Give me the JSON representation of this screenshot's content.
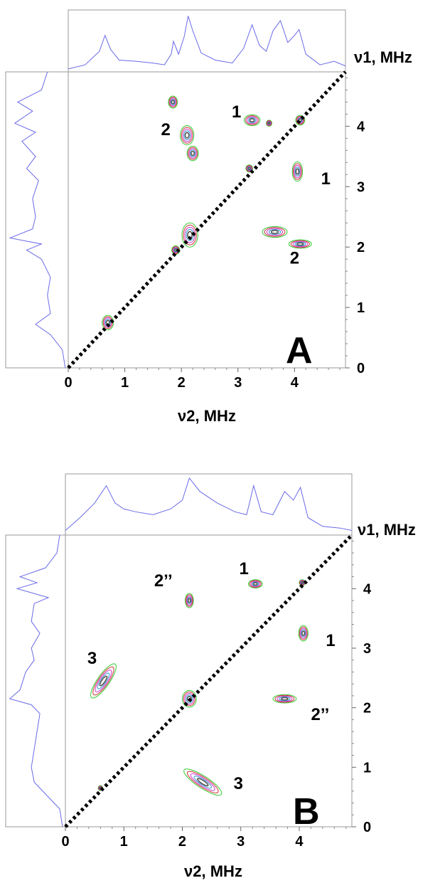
{
  "chart_data": [
    {
      "type": "contour",
      "panel_letter": "A",
      "xlabel": "ν2, MHz",
      "ylabel": "ν1, MHz",
      "xlim": [
        0,
        4.9
      ],
      "ylim": [
        0,
        4.9
      ],
      "xticks": [
        "0",
        "1",
        "2",
        "3",
        "4"
      ],
      "yticks": [
        "0",
        "1",
        "2",
        "3",
        "4"
      ],
      "diagonal": true,
      "peaks": [
        {
          "label": "1",
          "x": 3.2,
          "y": 4.1
        },
        {
          "label": "1",
          "x": 4.05,
          "y": 3.25
        },
        {
          "label": "2",
          "x": 2.1,
          "y": 3.9
        },
        {
          "label": "2",
          "x": 3.9,
          "y": 2.1
        }
      ],
      "contours": [
        {
          "x": 1.85,
          "y": 4.4,
          "rx": 0.08,
          "ry": 0.1
        },
        {
          "x": 2.1,
          "y": 3.85,
          "rx": 0.12,
          "ry": 0.16
        },
        {
          "x": 2.2,
          "y": 3.55,
          "rx": 0.1,
          "ry": 0.12
        },
        {
          "x": 3.25,
          "y": 4.1,
          "rx": 0.14,
          "ry": 0.09
        },
        {
          "x": 3.55,
          "y": 4.05,
          "rx": 0.05,
          "ry": 0.05
        },
        {
          "x": 4.1,
          "y": 4.1,
          "rx": 0.08,
          "ry": 0.08
        },
        {
          "x": 4.05,
          "y": 3.25,
          "rx": 0.09,
          "ry": 0.16
        },
        {
          "x": 3.65,
          "y": 2.25,
          "rx": 0.22,
          "ry": 0.09
        },
        {
          "x": 4.1,
          "y": 2.05,
          "rx": 0.2,
          "ry": 0.07
        },
        {
          "x": 2.15,
          "y": 2.2,
          "rx": 0.14,
          "ry": 0.2
        },
        {
          "x": 1.9,
          "y": 1.95,
          "rx": 0.07,
          "ry": 0.07
        },
        {
          "x": 0.7,
          "y": 0.75,
          "rx": 0.1,
          "ry": 0.12
        },
        {
          "x": 3.2,
          "y": 3.3,
          "rx": 0.06,
          "ry": 0.06
        }
      ],
      "top_projection": [
        [
          0,
          0.05
        ],
        [
          0.3,
          0.12
        ],
        [
          0.55,
          0.35
        ],
        [
          0.65,
          0.62
        ],
        [
          0.75,
          0.38
        ],
        [
          0.9,
          0.2
        ],
        [
          1.2,
          0.18
        ],
        [
          1.5,
          0.15
        ],
        [
          1.7,
          0.12
        ],
        [
          1.82,
          0.3
        ],
        [
          1.86,
          0.52
        ],
        [
          1.95,
          0.3
        ],
        [
          2.05,
          0.6
        ],
        [
          2.12,
          0.95
        ],
        [
          2.2,
          0.7
        ],
        [
          2.35,
          0.32
        ],
        [
          2.6,
          0.2
        ],
        [
          2.9,
          0.15
        ],
        [
          3.1,
          0.4
        ],
        [
          3.25,
          0.8
        ],
        [
          3.38,
          0.45
        ],
        [
          3.5,
          0.35
        ],
        [
          3.62,
          0.7
        ],
        [
          3.75,
          0.87
        ],
        [
          3.88,
          0.5
        ],
        [
          4.0,
          0.62
        ],
        [
          4.08,
          0.72
        ],
        [
          4.2,
          0.3
        ],
        [
          4.45,
          0.12
        ],
        [
          4.7,
          0.18
        ],
        [
          4.9,
          0.1
        ]
      ],
      "left_projection": [
        [
          0,
          0.05
        ],
        [
          0.3,
          0.1
        ],
        [
          0.55,
          0.3
        ],
        [
          0.72,
          0.55
        ],
        [
          0.9,
          0.3
        ],
        [
          1.2,
          0.35
        ],
        [
          1.5,
          0.3
        ],
        [
          1.8,
          0.45
        ],
        [
          1.95,
          0.7
        ],
        [
          2.05,
          0.45
        ],
        [
          2.15,
          0.98
        ],
        [
          2.3,
          0.6
        ],
        [
          2.5,
          0.55
        ],
        [
          2.8,
          0.6
        ],
        [
          3.1,
          0.5
        ],
        [
          3.3,
          0.7
        ],
        [
          3.5,
          0.55
        ],
        [
          3.75,
          0.78
        ],
        [
          3.9,
          0.55
        ],
        [
          4.05,
          0.9
        ],
        [
          4.25,
          0.6
        ],
        [
          4.4,
          0.85
        ],
        [
          4.6,
          0.45
        ],
        [
          4.9,
          0.35
        ]
      ]
    },
    {
      "type": "contour",
      "panel_letter": "B",
      "xlabel": "ν2, MHz",
      "ylabel": "ν1, MHz",
      "xlim": [
        0,
        4.9
      ],
      "ylim": [
        0,
        4.9
      ],
      "xticks": [
        "0",
        "1",
        "2",
        "3",
        "4"
      ],
      "yticks": [
        "0",
        "1",
        "2",
        "3",
        "4"
      ],
      "diagonal": true,
      "peaks": [
        {
          "label": "1",
          "x": 3.2,
          "y": 4.1
        },
        {
          "label": "1",
          "x": 4.05,
          "y": 3.25
        },
        {
          "label": "2’’",
          "x": 2.1,
          "y": 3.8
        },
        {
          "label": "2’’",
          "x": 3.75,
          "y": 2.15
        },
        {
          "label": "3",
          "x": 0.7,
          "y": 2.4
        },
        {
          "label": "3",
          "x": 2.35,
          "y": 0.75
        }
      ],
      "contours": [
        {
          "x": 3.25,
          "y": 4.08,
          "rx": 0.12,
          "ry": 0.07
        },
        {
          "x": 4.05,
          "y": 4.1,
          "rx": 0.05,
          "ry": 0.05
        },
        {
          "x": 2.12,
          "y": 3.8,
          "rx": 0.07,
          "ry": 0.12
        },
        {
          "x": 4.07,
          "y": 3.25,
          "rx": 0.08,
          "ry": 0.13
        },
        {
          "x": 3.75,
          "y": 2.15,
          "rx": 0.2,
          "ry": 0.07
        },
        {
          "x": 2.12,
          "y": 2.15,
          "rx": 0.12,
          "ry": 0.14
        },
        {
          "x": 0.65,
          "y": 2.45,
          "rx": 0.35,
          "ry": 0.1,
          "angle": -55
        },
        {
          "x": 2.35,
          "y": 0.75,
          "rx": 0.38,
          "ry": 0.1,
          "angle": 33
        },
        {
          "x": 0.6,
          "y": 0.65,
          "rx": 0.04,
          "ry": 0.04
        }
      ],
      "top_projection": [
        [
          0,
          0.08
        ],
        [
          0.25,
          0.3
        ],
        [
          0.5,
          0.55
        ],
        [
          0.7,
          0.85
        ],
        [
          0.85,
          0.55
        ],
        [
          1.0,
          0.45
        ],
        [
          1.2,
          0.4
        ],
        [
          1.5,
          0.35
        ],
        [
          1.8,
          0.45
        ],
        [
          2.0,
          0.6
        ],
        [
          2.12,
          0.98
        ],
        [
          2.3,
          0.75
        ],
        [
          2.6,
          0.55
        ],
        [
          2.9,
          0.4
        ],
        [
          3.1,
          0.35
        ],
        [
          3.22,
          0.85
        ],
        [
          3.35,
          0.4
        ],
        [
          3.55,
          0.35
        ],
        [
          3.75,
          0.75
        ],
        [
          3.9,
          0.6
        ],
        [
          4.02,
          0.82
        ],
        [
          4.15,
          0.3
        ],
        [
          4.4,
          0.15
        ],
        [
          4.7,
          0.12
        ],
        [
          4.9,
          0.08
        ]
      ],
      "left_projection": [
        [
          0,
          0.05
        ],
        [
          0.3,
          0.1
        ],
        [
          0.55,
          0.35
        ],
        [
          0.75,
          0.55
        ],
        [
          1.0,
          0.6
        ],
        [
          1.3,
          0.55
        ],
        [
          1.6,
          0.5
        ],
        [
          1.9,
          0.45
        ],
        [
          2.05,
          0.6
        ],
        [
          2.15,
          0.98
        ],
        [
          2.3,
          0.8
        ],
        [
          2.6,
          0.7
        ],
        [
          2.8,
          0.55
        ],
        [
          3.0,
          0.6
        ],
        [
          3.25,
          0.45
        ],
        [
          3.45,
          0.6
        ],
        [
          3.75,
          0.55
        ],
        [
          3.85,
          0.3
        ],
        [
          4.0,
          0.85
        ],
        [
          4.1,
          0.5
        ],
        [
          4.2,
          0.8
        ],
        [
          4.35,
          0.35
        ],
        [
          4.6,
          0.15
        ],
        [
          4.9,
          0.1
        ]
      ]
    }
  ]
}
